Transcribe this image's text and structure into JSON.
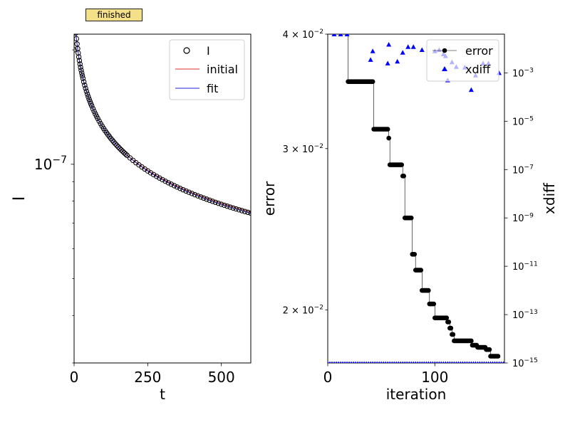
{
  "status_badge": "finished",
  "chart_data": [
    {
      "type": "scatter",
      "xlabel": "t",
      "ylabel": "I",
      "xlim": [
        0,
        600
      ],
      "ylim": [
        3e-08,
        2.2e-07
      ],
      "yscale": "log",
      "x_ticks": [
        0,
        250,
        500
      ],
      "x_tick_labels": [
        "0",
        "250",
        "500"
      ],
      "y_tick_labels": [
        {
          "value": 1e-07,
          "base": "10",
          "exp": "−7"
        }
      ],
      "legend_position": "top-right",
      "legend": [
        "I",
        "initial",
        "fit"
      ],
      "series": [
        {
          "name": "I",
          "style": "open-circle",
          "color": "#000000",
          "model": {
            "amplitude": 1.3e-07,
            "t0": 10,
            "exponent": 0.3
          }
        },
        {
          "name": "initial",
          "style": "line",
          "color": "#e03030",
          "model": {
            "amplitude": 1.3e-07,
            "t0": 10,
            "exponent": 0.296
          }
        },
        {
          "name": "fit",
          "style": "line",
          "color": "#2020dd",
          "model": {
            "amplitude": 1.3e-07,
            "t0": 10,
            "exponent": 0.3
          }
        }
      ],
      "points_x": [
        0,
        2,
        4,
        6,
        8,
        10,
        12,
        14,
        16,
        18,
        20,
        22,
        24,
        26,
        28,
        30,
        33,
        36,
        39,
        42,
        45,
        48,
        51,
        54,
        57,
        60,
        64,
        68,
        72,
        76,
        80,
        85,
        90,
        95,
        100,
        105,
        110,
        115,
        120,
        125,
        130,
        135,
        140,
        145,
        150,
        155,
        160,
        165,
        170,
        175,
        180,
        190,
        200,
        210,
        220,
        230,
        240,
        250,
        260,
        270,
        280,
        290,
        300,
        310,
        320,
        330,
        340,
        350,
        360,
        370,
        380,
        390,
        400,
        410,
        420,
        430,
        440,
        450,
        460,
        470,
        480,
        490,
        500,
        510,
        520,
        530,
        540,
        550,
        560,
        570,
        580,
        590,
        600
      ]
    },
    {
      "type": "scatter",
      "xlabel": "iteration",
      "ylabel": "error",
      "y2label": "xdiff",
      "xlim": [
        0,
        165
      ],
      "ylim": [
        0.0175,
        0.04
      ],
      "yscale": "log",
      "y2lim": [
        1e-15,
        0.04
      ],
      "y2scale": "log",
      "x_ticks": [
        0,
        100
      ],
      "x_tick_labels": [
        "0",
        "100"
      ],
      "y_tick_labels": [
        {
          "value": 0.04,
          "base": "4 × 10",
          "exp": "−2"
        },
        {
          "value": 0.03,
          "base": "3 × 10",
          "exp": "−2"
        },
        {
          "value": 0.02,
          "base": "2 × 10",
          "exp": "−2"
        }
      ],
      "y2_tick_labels": [
        {
          "value": 0.001,
          "base": "10",
          "exp": "−3"
        },
        {
          "value": 1e-05,
          "base": "10",
          "exp": "−5"
        },
        {
          "value": 1e-07,
          "base": "10",
          "exp": "−7"
        },
        {
          "value": 1e-09,
          "base": "10",
          "exp": "−9"
        },
        {
          "value": 1e-11,
          "base": "10",
          "exp": "−11"
        },
        {
          "value": 1e-13,
          "base": "10",
          "exp": "−13"
        },
        {
          "value": 1e-15,
          "base": "10",
          "exp": "−15"
        }
      ],
      "legend_position": "top-right",
      "legend": [
        "error",
        "xdiff"
      ],
      "error_steps": [
        [
          0,
          19,
          0.0405
        ],
        [
          19,
          43,
          0.0355
        ],
        [
          43,
          57,
          0.0315
        ],
        [
          57,
          58,
          0.0308
        ],
        [
          58,
          66,
          0.0288
        ],
        [
          66,
          70,
          0.0288
        ],
        [
          70,
          72,
          0.028
        ],
        [
          72,
          79,
          0.0252
        ],
        [
          79,
          82,
          0.023
        ],
        [
          82,
          88,
          0.0221
        ],
        [
          88,
          95,
          0.021
        ],
        [
          95,
          100,
          0.0203
        ],
        [
          100,
          112,
          0.0196
        ],
        [
          112,
          114,
          0.0194
        ],
        [
          114,
          116,
          0.0191
        ],
        [
          116,
          118,
          0.0188
        ],
        [
          118,
          135,
          0.0185
        ],
        [
          135,
          140,
          0.0183
        ],
        [
          140,
          148,
          0.0182
        ],
        [
          148,
          152,
          0.0181
        ],
        [
          152,
          160,
          0.0178
        ]
      ],
      "xdiff_points": [
        [
          6,
          0.04
        ],
        [
          12,
          0.04
        ],
        [
          18,
          0.04
        ],
        [
          40,
          0.0035
        ],
        [
          42,
          0.008
        ],
        [
          56,
          0.0025
        ],
        [
          57,
          0.015
        ],
        [
          65,
          0.003
        ],
        [
          70,
          0.007
        ],
        [
          75,
          0.012
        ],
        [
          80,
          0.012
        ],
        [
          88,
          0.009
        ],
        [
          100,
          0.008
        ],
        [
          104,
          0.009
        ],
        [
          108,
          0.006
        ],
        [
          110,
          0.005
        ],
        [
          112,
          0.0005
        ],
        [
          116,
          0.0028
        ],
        [
          120,
          0.0018
        ],
        [
          128,
          0.0017
        ],
        [
          134,
          0.0002
        ],
        [
          138,
          0.0008
        ],
        [
          145,
          0.0025
        ],
        [
          150,
          0.0025
        ],
        [
          160,
          0.001
        ]
      ],
      "xdiff_floor": 1e-15
    }
  ]
}
